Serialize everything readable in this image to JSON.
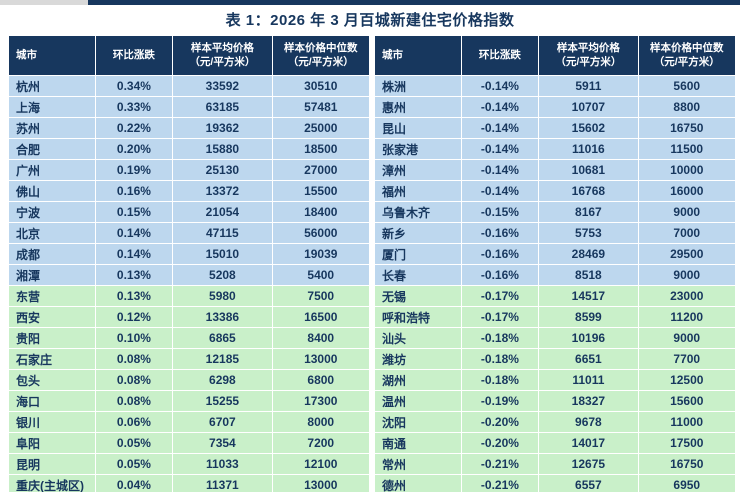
{
  "title": "表 1：2026 年 3 月百城新建住宅价格指数",
  "columns": [
    "城市",
    "环比涨跌",
    "样本平均价格\n（元/平方米）",
    "样本价格中位数\n（元/平方米）"
  ],
  "colors": {
    "header_bg": "#17375E",
    "header_text": "#FFFFFF",
    "row_blue": "#BDD7EE",
    "row_green": "#C9F0C9",
    "text": "#17375E",
    "title_text": "#17375E",
    "top_bar": "#17375E",
    "page_edge": "#D9D9D9"
  },
  "tables": [
    {
      "name": "left-rising-cities",
      "rows": [
        {
          "city": "杭州",
          "change": "0.34%",
          "avg": "33592",
          "median": "30510",
          "group": "blue"
        },
        {
          "city": "上海",
          "change": "0.33%",
          "avg": "63185",
          "median": "57481",
          "group": "blue"
        },
        {
          "city": "苏州",
          "change": "0.22%",
          "avg": "19362",
          "median": "25000",
          "group": "blue"
        },
        {
          "city": "合肥",
          "change": "0.20%",
          "avg": "15880",
          "median": "18500",
          "group": "blue"
        },
        {
          "city": "广州",
          "change": "0.19%",
          "avg": "25130",
          "median": "27000",
          "group": "blue"
        },
        {
          "city": "佛山",
          "change": "0.16%",
          "avg": "13372",
          "median": "15500",
          "group": "blue"
        },
        {
          "city": "宁波",
          "change": "0.15%",
          "avg": "21054",
          "median": "18400",
          "group": "blue"
        },
        {
          "city": "北京",
          "change": "0.14%",
          "avg": "47115",
          "median": "56000",
          "group": "blue"
        },
        {
          "city": "成都",
          "change": "0.14%",
          "avg": "15010",
          "median": "19039",
          "group": "blue"
        },
        {
          "city": "湘潭",
          "change": "0.13%",
          "avg": "5208",
          "median": "5400",
          "group": "blue"
        },
        {
          "city": "东营",
          "change": "0.13%",
          "avg": "5980",
          "median": "7500",
          "group": "green"
        },
        {
          "city": "西安",
          "change": "0.12%",
          "avg": "13386",
          "median": "16500",
          "group": "green"
        },
        {
          "city": "贵阳",
          "change": "0.10%",
          "avg": "6865",
          "median": "8400",
          "group": "green"
        },
        {
          "city": "石家庄",
          "change": "0.08%",
          "avg": "12185",
          "median": "13000",
          "group": "green"
        },
        {
          "city": "包头",
          "change": "0.08%",
          "avg": "6298",
          "median": "6800",
          "group": "green"
        },
        {
          "city": "海口",
          "change": "0.08%",
          "avg": "15255",
          "median": "17300",
          "group": "green"
        },
        {
          "city": "银川",
          "change": "0.06%",
          "avg": "6707",
          "median": "8000",
          "group": "green"
        },
        {
          "city": "阜阳",
          "change": "0.05%",
          "avg": "7354",
          "median": "7200",
          "group": "green"
        },
        {
          "city": "昆明",
          "change": "0.05%",
          "avg": "11033",
          "median": "12100",
          "group": "green"
        },
        {
          "city": "重庆(主城区)",
          "change": "0.04%",
          "avg": "11371",
          "median": "13000",
          "group": "green"
        }
      ]
    },
    {
      "name": "right-falling-cities",
      "rows": [
        {
          "city": "株洲",
          "change": "-0.14%",
          "avg": "5911",
          "median": "5600",
          "group": "blue"
        },
        {
          "city": "惠州",
          "change": "-0.14%",
          "avg": "10707",
          "median": "8800",
          "group": "blue"
        },
        {
          "city": "昆山",
          "change": "-0.14%",
          "avg": "15602",
          "median": "16750",
          "group": "blue"
        },
        {
          "city": "张家港",
          "change": "-0.14%",
          "avg": "11016",
          "median": "11500",
          "group": "blue"
        },
        {
          "city": "漳州",
          "change": "-0.14%",
          "avg": "10681",
          "median": "10000",
          "group": "blue"
        },
        {
          "city": "福州",
          "change": "-0.14%",
          "avg": "16768",
          "median": "16000",
          "group": "blue"
        },
        {
          "city": "乌鲁木齐",
          "change": "-0.15%",
          "avg": "8167",
          "median": "9000",
          "group": "blue"
        },
        {
          "city": "新乡",
          "change": "-0.16%",
          "avg": "5753",
          "median": "7000",
          "group": "blue"
        },
        {
          "city": "厦门",
          "change": "-0.16%",
          "avg": "28469",
          "median": "29500",
          "group": "blue"
        },
        {
          "city": "长春",
          "change": "-0.16%",
          "avg": "8518",
          "median": "9000",
          "group": "blue"
        },
        {
          "city": "无锡",
          "change": "-0.17%",
          "avg": "14517",
          "median": "23000",
          "group": "green"
        },
        {
          "city": "呼和浩特",
          "change": "-0.17%",
          "avg": "8599",
          "median": "11200",
          "group": "green"
        },
        {
          "city": "汕头",
          "change": "-0.18%",
          "avg": "10196",
          "median": "9000",
          "group": "green"
        },
        {
          "city": "潍坊",
          "change": "-0.18%",
          "avg": "6651",
          "median": "7700",
          "group": "green"
        },
        {
          "city": "湖州",
          "change": "-0.18%",
          "avg": "11011",
          "median": "12500",
          "group": "green"
        },
        {
          "city": "温州",
          "change": "-0.19%",
          "avg": "18327",
          "median": "15600",
          "group": "green"
        },
        {
          "city": "沈阳",
          "change": "-0.20%",
          "avg": "9678",
          "median": "11000",
          "group": "green"
        },
        {
          "city": "南通",
          "change": "-0.20%",
          "avg": "14017",
          "median": "17500",
          "group": "green"
        },
        {
          "city": "常州",
          "change": "-0.21%",
          "avg": "12675",
          "median": "16750",
          "group": "green"
        },
        {
          "city": "德州",
          "change": "-0.21%",
          "avg": "6557",
          "median": "6950",
          "group": "green"
        }
      ]
    }
  ]
}
